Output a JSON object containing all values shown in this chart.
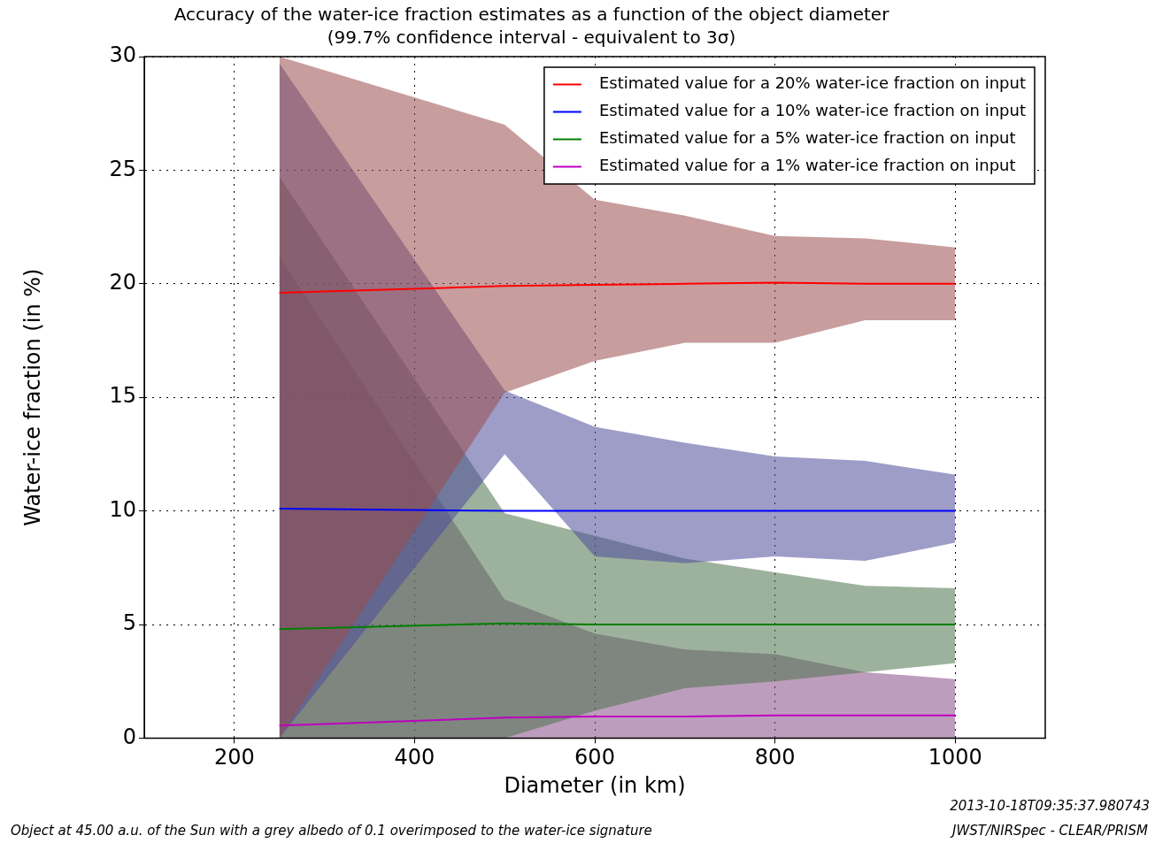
{
  "chart_data": {
    "type": "line",
    "title": "Accuracy of the water-ice fraction estimates as a function of the object diameter",
    "subtitle": "(99.7% confidence interval - equivalent to 3σ)",
    "xlabel": "Diameter (in km)",
    "ylabel": "Water-ice fraction (in %)",
    "x": [
      250,
      500,
      600,
      700,
      800,
      900,
      1000
    ],
    "series": [
      {
        "name": "Estimated value for a 20% water-ice fraction on input",
        "color": "#ff0000",
        "values": [
          19.6,
          19.9,
          19.95,
          20.0,
          20.05,
          20.0,
          20.0
        ],
        "lower": [
          0,
          15.2,
          16.6,
          17.4,
          17.4,
          18.4,
          18.4
        ],
        "upper": [
          30,
          27,
          23.7,
          23.0,
          22.1,
          22.0,
          21.6
        ]
      },
      {
        "name": "Estimated value for a 10% water-ice fraction on input",
        "color": "#0000ff",
        "values": [
          10.1,
          10.0,
          10.0,
          10.0,
          10.0,
          10.0,
          10.0
        ],
        "lower": [
          0,
          12.5,
          8.0,
          7.7,
          8.0,
          7.8,
          8.6
        ],
        "upper": [
          29.7,
          15.3,
          13.7,
          13.0,
          12.4,
          12.2,
          11.6
        ]
      },
      {
        "name": "Estimated value for a 5% water-ice fraction on input",
        "color": "#008000",
        "values": [
          4.8,
          5.05,
          5.0,
          5.0,
          5.0,
          5.0,
          5.0
        ],
        "lower": [
          0,
          0,
          1.2,
          2.2,
          2.5,
          2.9,
          3.3
        ],
        "upper": [
          24.7,
          9.9,
          8.9,
          7.9,
          7.3,
          6.7,
          6.6
        ]
      },
      {
        "name": "Estimated value for a 1% water-ice fraction on input",
        "color": "#bf00bf",
        "values": [
          0.55,
          0.9,
          0.95,
          0.95,
          1.0,
          1.0,
          1.0
        ],
        "lower": [
          0,
          0,
          0,
          0,
          0,
          0,
          0
        ],
        "upper": [
          21.2,
          6.1,
          4.6,
          3.9,
          3.7,
          2.9,
          2.6
        ]
      }
    ],
    "xlim": [
      100,
      1100
    ],
    "xticks": [
      200,
      400,
      600,
      800,
      1000
    ],
    "ylim": [
      0,
      30
    ],
    "yticks": [
      0,
      5,
      10,
      15,
      20,
      25,
      30
    ],
    "grid": true,
    "legend": "top right",
    "marker": "none",
    "line_style": "solid",
    "annotations": [
      "2013-10-18T09:35:37.980743",
      "Object at 45.00 a.u. of the Sun with a grey albedo of 0.1 overimposed to the water-ice signature",
      "JWST/NIRSpec - CLEAR/PRISM"
    ]
  }
}
